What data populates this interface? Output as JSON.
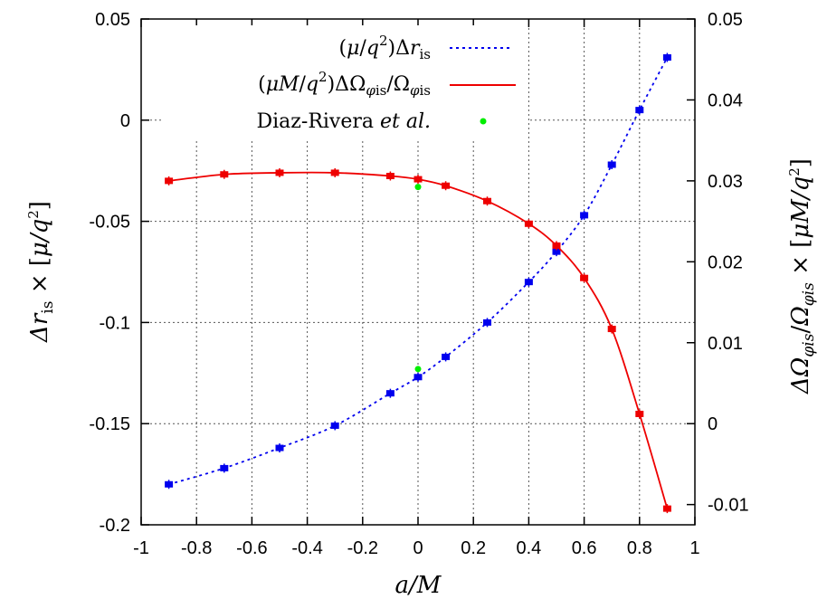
{
  "chart_data": {
    "type": "line",
    "x_axis": {
      "label": "a/M",
      "range": [
        -1,
        1
      ],
      "ticks": [
        "-1",
        "-0.8",
        "-0.6",
        "-0.4",
        "-0.2",
        "0",
        "0.2",
        "0.4",
        "0.6",
        "0.8",
        "1"
      ]
    },
    "y_left_axis": {
      "label": "Δr_is × [μ/q²]",
      "range": [
        -0.2,
        0.05
      ],
      "ticks": [
        "0.05",
        "0",
        "-0.05",
        "-0.1",
        "-0.15",
        "-0.2"
      ]
    },
    "y_right_axis": {
      "label": "ΔΩ_φis/Ω_φis × [μM/q²]",
      "range": [
        -0.0125,
        0.05
      ],
      "ticks": [
        "0.05",
        "0.04",
        "0.03",
        "0.02",
        "0.01",
        "0",
        "-0.01"
      ]
    },
    "grid": true,
    "legend_position": "top-right",
    "series": [
      {
        "name": "(μ/q²)Δr_is",
        "axis": "left",
        "color": "#0000ee",
        "line_style": "dotted",
        "x": [
          -0.9,
          -0.7,
          -0.5,
          -0.3,
          -0.1,
          0.0,
          0.1,
          0.25,
          0.4,
          0.5,
          0.6,
          0.7,
          0.8,
          0.9
        ],
        "y": [
          -0.18,
          -0.172,
          -0.162,
          -0.151,
          -0.135,
          -0.127,
          -0.117,
          -0.1,
          -0.08,
          -0.065,
          -0.047,
          -0.022,
          0.005,
          0.031
        ]
      },
      {
        "name": "(μM/q²)ΔΩ_φis/Ω_φis",
        "axis": "right",
        "color": "#ee0000",
        "line_style": "solid",
        "x": [
          -0.9,
          -0.7,
          -0.5,
          -0.3,
          -0.1,
          0.0,
          0.1,
          0.25,
          0.4,
          0.5,
          0.6,
          0.7,
          0.8,
          0.9
        ],
        "y": [
          0.03,
          0.0308,
          0.031,
          0.031,
          0.0306,
          0.0302,
          0.0294,
          0.0275,
          0.0247,
          0.022,
          0.018,
          0.0117,
          0.0012,
          -0.0105
        ]
      },
      {
        "name": "Diaz-Rivera et al.",
        "axis": "left",
        "color": "#00ee00",
        "line_style": "points",
        "x": [
          0.0,
          0.0
        ],
        "y": [
          -0.033,
          -0.123
        ]
      }
    ]
  }
}
